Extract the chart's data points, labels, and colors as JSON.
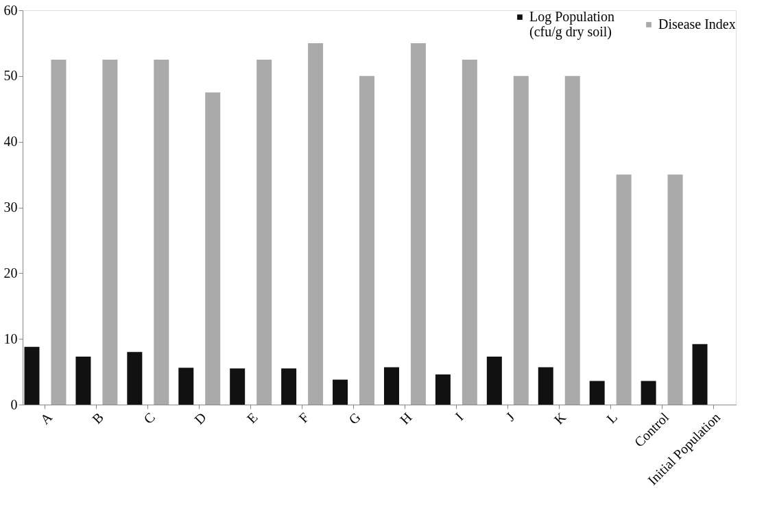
{
  "chart_data": {
    "type": "bar",
    "categories": [
      "A",
      "B",
      "C",
      "D",
      "E",
      "F",
      "G",
      "H",
      "I",
      "J",
      "K",
      "L",
      "Control",
      "Initial Population"
    ],
    "series": [
      {
        "name": "Log Population\n(cfu/g dry soil)",
        "color": "#111111",
        "values": [
          8.8,
          7.3,
          8.0,
          5.6,
          5.5,
          5.5,
          3.8,
          5.7,
          4.6,
          7.3,
          5.7,
          3.6,
          3.6,
          9.2
        ]
      },
      {
        "name": "Disease Index",
        "color": "#aaaaaa",
        "values": [
          52.5,
          52.5,
          52.5,
          47.5,
          52.5,
          55,
          50,
          55,
          52.5,
          50,
          50,
          35,
          35,
          null
        ]
      }
    ],
    "ylim": [
      0,
      60
    ],
    "yticks": [
      0,
      10,
      20,
      30,
      40,
      50,
      60
    ],
    "grid": false,
    "legend": "top right"
  }
}
